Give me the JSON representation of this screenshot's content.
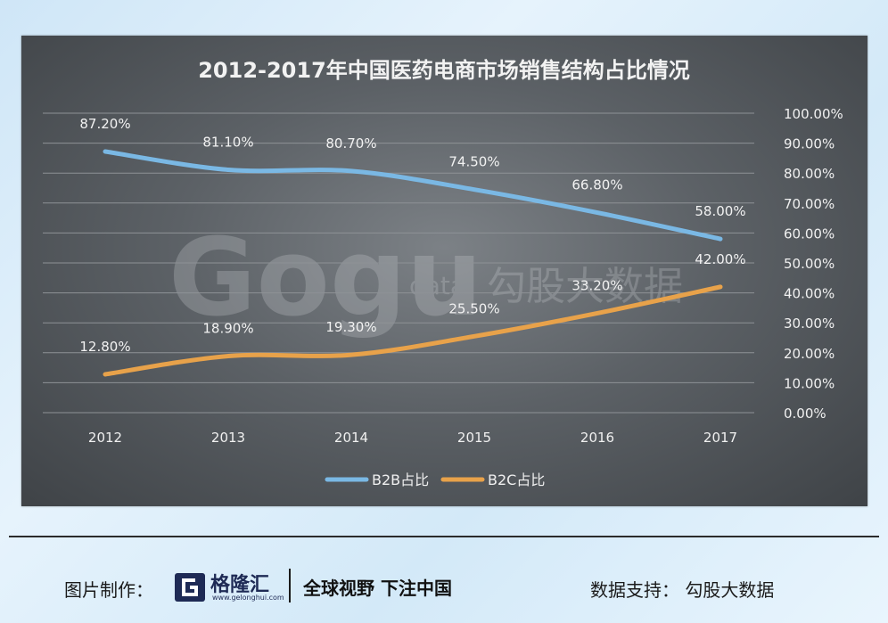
{
  "chart_data": {
    "type": "line",
    "title": "2012-2017年中国医药电商市场销售结构占比情况",
    "categories": [
      "2012",
      "2013",
      "2014",
      "2015",
      "2016",
      "2017"
    ],
    "series": [
      {
        "name": "B2B占比",
        "values": [
          87.2,
          81.1,
          80.7,
          74.5,
          66.8,
          58.0
        ],
        "labels": [
          "87.20%",
          "81.10%",
          "80.70%",
          "74.50%",
          "66.80%",
          "58.00%"
        ],
        "color": "#7ab8e4"
      },
      {
        "name": "B2C占比",
        "values": [
          12.8,
          18.9,
          19.3,
          25.5,
          33.2,
          42.0
        ],
        "labels": [
          "12.80%",
          "18.90%",
          "19.30%",
          "25.50%",
          "33.20%",
          "42.00%"
        ],
        "color": "#e8a24a"
      }
    ],
    "y_axis": {
      "position": "right",
      "ylim": [
        0,
        100
      ],
      "ticks": [
        0,
        10,
        20,
        30,
        40,
        50,
        60,
        70,
        80,
        90,
        100
      ],
      "tick_labels": [
        "0.00%",
        "10.00%",
        "20.00%",
        "30.00%",
        "40.00%",
        "50.00%",
        "60.00%",
        "70.00%",
        "80.00%",
        "90.00%",
        "100.00%"
      ]
    },
    "grid": true,
    "legend": "bottom-center",
    "watermark": "Gogu data 勾股大数据"
  },
  "footer": {
    "credit_label": "图片制作：",
    "brand_name": "格隆汇",
    "brand_url": "www.gelonghui.com",
    "slogan": "全球视野 下注中国",
    "data_support": "数据支持：  勾股大数据"
  }
}
